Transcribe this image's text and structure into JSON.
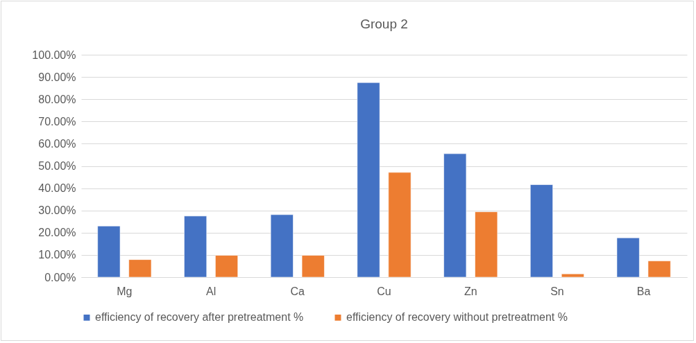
{
  "chart_data": {
    "type": "bar",
    "title": "Group 2",
    "categories": [
      "Mg",
      "Al",
      "Ca",
      "Cu",
      "Zn",
      "Sn",
      "Ba"
    ],
    "series": [
      {
        "name": "efficiency of recovery after pretreatment %",
        "color": "#4472c4",
        "values": [
          23.0,
          27.5,
          28.1,
          87.5,
          55.5,
          41.6,
          17.7
        ]
      },
      {
        "name": "efficiency of recovery without pretreatment %",
        "color": "#ed7d31",
        "values": [
          7.9,
          9.8,
          9.8,
          47.1,
          29.4,
          1.5,
          7.3
        ]
      }
    ],
    "ylim": [
      0,
      100
    ],
    "yticks": [
      {
        "value": 0,
        "label": "0.00%"
      },
      {
        "value": 10,
        "label": "10.00%"
      },
      {
        "value": 20,
        "label": "20.00%"
      },
      {
        "value": 30,
        "label": "30.00%"
      },
      {
        "value": 40,
        "label": "40.00%"
      },
      {
        "value": 50,
        "label": "50.00%"
      },
      {
        "value": 60,
        "label": "60.00%"
      },
      {
        "value": 70,
        "label": "70.00%"
      },
      {
        "value": 80,
        "label": "80.00%"
      },
      {
        "value": 90,
        "label": "90.00%"
      },
      {
        "value": 100,
        "label": "100.00%"
      }
    ],
    "grid": "y",
    "legend": "bottom"
  }
}
